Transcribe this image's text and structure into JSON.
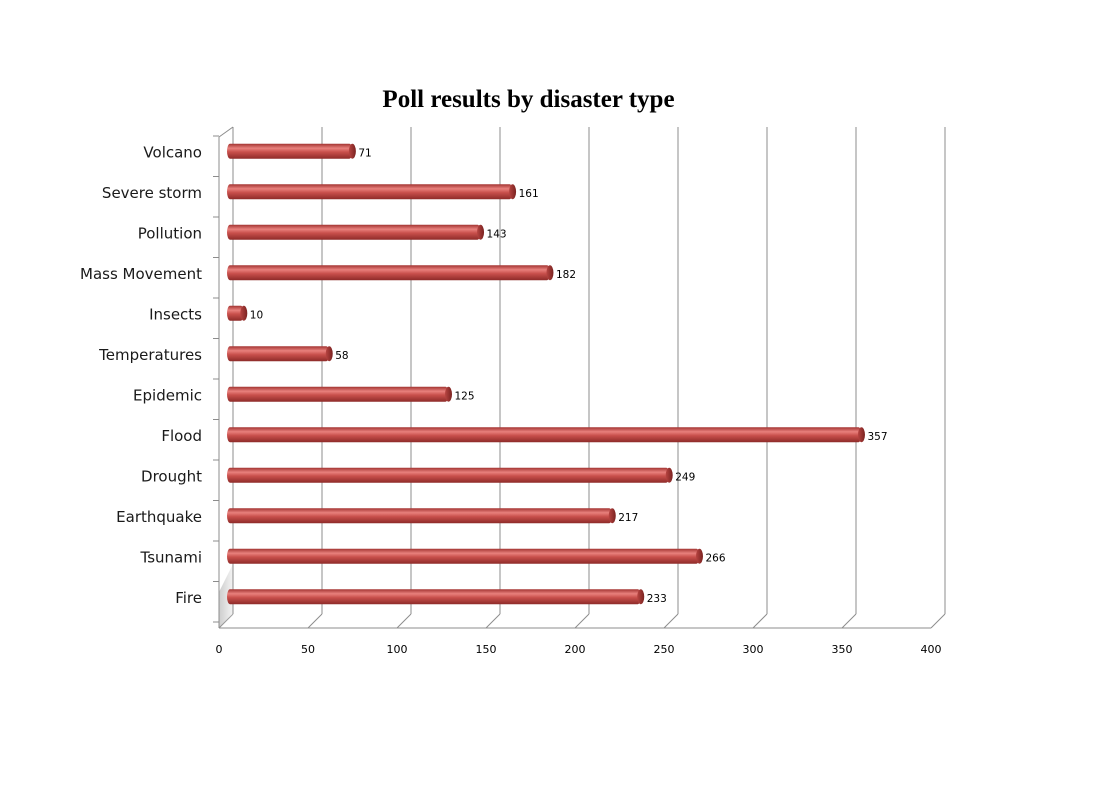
{
  "chart_data": {
    "type": "bar",
    "orientation": "horizontal",
    "title": "Poll results by disaster type",
    "xlabel": "",
    "ylabel": "",
    "categories": [
      "Volcano",
      "Severe storm",
      "Pollution",
      "Mass Movement",
      "Insects",
      "Temperatures",
      "Epidemic",
      "Flood",
      "Drought",
      "Earthquake",
      "Tsunami",
      "Fire"
    ],
    "values": [
      71,
      161,
      143,
      182,
      10,
      58,
      125,
      357,
      249,
      217,
      266,
      233
    ],
    "xlim": [
      0,
      400
    ],
    "xticks": [
      0,
      50,
      100,
      150,
      200,
      250,
      300,
      350,
      400
    ],
    "grid": true,
    "legend": "none",
    "bar_color": "#c0504d"
  }
}
